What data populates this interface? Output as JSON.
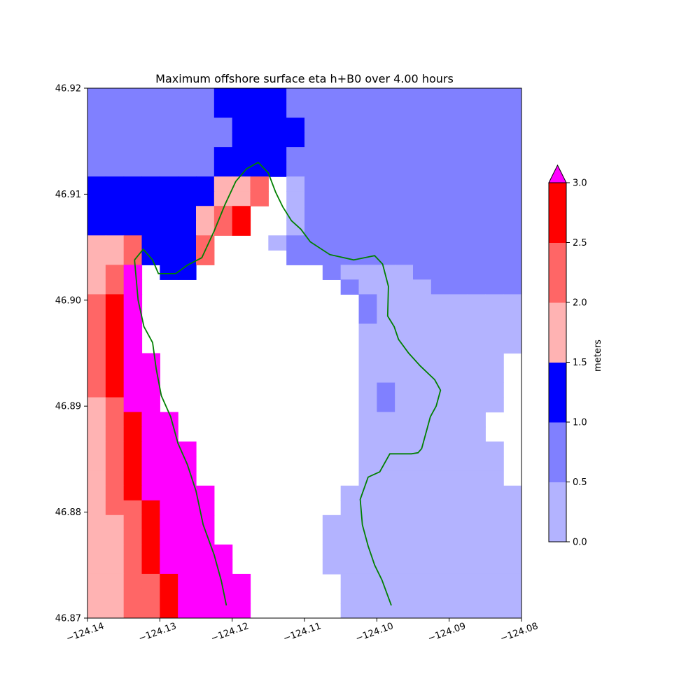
{
  "chart_data": {
    "type": "heatmap",
    "title": "Maximum offshore surface eta h+B0 over 4.00 hours",
    "xlabel": "",
    "ylabel": "",
    "xlim": [
      -124.14,
      -124.08
    ],
    "ylim": [
      46.87,
      46.92
    ],
    "x_ticks": [
      "−124.14",
      "−124.13",
      "−124.12",
      "−124.11",
      "−124.10",
      "−124.09",
      "−124.08"
    ],
    "x_tick_values": [
      -124.14,
      -124.13,
      -124.12,
      -124.11,
      -124.1,
      -124.09,
      -124.08
    ],
    "y_ticks": [
      "46.87",
      "46.88",
      "46.89",
      "46.90",
      "46.91",
      "46.92"
    ],
    "y_tick_values": [
      46.87,
      46.88,
      46.89,
      46.9,
      46.91,
      46.92
    ],
    "grid": false,
    "cell_size_deg": 0.0025,
    "colorbar": {
      "label": "meters",
      "ticks": [
        "0.0",
        "0.5",
        "1.0",
        "1.5",
        "2.0",
        "2.5",
        "3.0"
      ],
      "tick_values": [
        0.0,
        0.5,
        1.0,
        1.5,
        2.0,
        2.5,
        3.0
      ],
      "levels": [
        0.0,
        0.5,
        1.0,
        1.5,
        2.0,
        2.5,
        3.0
      ],
      "colors": [
        "#b3b3ff",
        "#8080ff",
        "#0000ff",
        "#ffb3b3",
        "#ff6666",
        "#ff0000"
      ],
      "over_color": "#ff00ff",
      "extend": "max"
    },
    "band_value_codes": "0:[0,0.5) 1:[0.5,1.0) 2:[1.0,1.5) 3:[1.5,2.0) 4:[2.0,2.5) 5:[2.5,3.0) 6:>3.0 .:land",
    "grid_rows_north_to_south": [
      "1111111222211111111111111",
      "1111111222211111111111111",
      "1111111122221111111111111",
      "1111111122221111111111111",
      "1111111222211111111111111",
      "1111111222211111111111111",
      "2222222334.01111111111111",
      "2222222334.01111111111111",
      "222222345..01111111111111",
      "222222345..01111111111111",
      "3342224...01111111111111",
      "3342224....11111111111111",
      "346.22.......1000011111111",
      "346...........1000011111",
      "456............100000000",
      "456............100000000",
      "456............000000000",
      "456............000000000",
      "4566...........00000000",
      "4566...........00000000",
      "4566...........01000000",
      "3466...........01000000",
      "34566..........0000000",
      "34566..........0000000",
      "345666.........00000000",
      "345666.........00000000",
      "345666.........00000000",
      "3456666.......00000000000",
      "3445666.......00000000000",
      "3345666......0000000000000",
      "3345666......0000000000000",
      "33456666.....0000000000000",
      "33456666.....0000000000000",
      "334456666.....000000000000",
      "334456666.....000000000000",
      "334456666.....000000000000"
    ],
    "shoreline_lonlat": [
      [
        -124.1335,
        46.9038
      ],
      [
        -124.1323,
        46.9048
      ],
      [
        -124.131,
        46.9038
      ],
      [
        -124.1302,
        46.9025
      ],
      [
        -124.1278,
        46.9025
      ],
      [
        -124.1262,
        46.9033
      ],
      [
        -124.1242,
        46.904
      ],
      [
        -124.1225,
        46.9065
      ],
      [
        -124.121,
        46.909
      ],
      [
        -124.1195,
        46.9112
      ],
      [
        -124.118,
        46.9124
      ],
      [
        -124.1164,
        46.913
      ],
      [
        -124.115,
        46.912
      ],
      [
        -124.114,
        46.9102
      ],
      [
        -124.113,
        46.9088
      ],
      [
        -124.1118,
        46.9075
      ],
      [
        -124.1105,
        46.9067
      ],
      [
        -124.1092,
        46.9055
      ],
      [
        -124.1065,
        46.9043
      ],
      [
        -124.1032,
        46.9038
      ],
      [
        -124.1003,
        46.9042
      ],
      [
        -124.0992,
        46.9034
      ],
      [
        -124.0984,
        46.9013
      ],
      [
        -124.0985,
        46.8985
      ],
      [
        -124.0976,
        46.8975
      ],
      [
        -124.097,
        46.8963
      ],
      [
        -124.0956,
        46.895
      ],
      [
        -124.094,
        46.8938
      ],
      [
        -124.092,
        46.8925
      ],
      [
        -124.0912,
        46.8915
      ],
      [
        -124.0918,
        46.89
      ],
      [
        -124.0926,
        46.889
      ],
      [
        -124.093,
        46.888
      ],
      [
        -124.0938,
        46.886
      ],
      [
        -124.0943,
        46.8856
      ],
      [
        -124.0952,
        46.8855
      ],
      [
        -124.0982,
        46.8855
      ],
      [
        -124.0996,
        46.8838
      ],
      [
        -124.1012,
        46.8833
      ],
      [
        -124.1023,
        46.8812
      ],
      [
        -124.102,
        46.8788
      ],
      [
        -124.1012,
        46.8768
      ],
      [
        -124.1003,
        46.875
      ],
      [
        -124.0993,
        46.8736
      ],
      [
        -124.098,
        46.8712
      ]
    ],
    "coast_left_lonlat": [
      [
        -124.1335,
        46.9038
      ],
      [
        -124.133,
        46.9
      ],
      [
        -124.1322,
        46.8975
      ],
      [
        -124.131,
        46.896
      ],
      [
        -124.1305,
        46.8935
      ],
      [
        -124.1298,
        46.891
      ],
      [
        -124.1285,
        46.889
      ],
      [
        -124.1275,
        46.8865
      ],
      [
        -124.1262,
        46.8845
      ],
      [
        -124.125,
        46.882
      ],
      [
        -124.124,
        46.8788
      ],
      [
        -124.1225,
        46.876
      ],
      [
        -124.1215,
        46.8735
      ],
      [
        -124.1208,
        46.8712
      ]
    ]
  }
}
